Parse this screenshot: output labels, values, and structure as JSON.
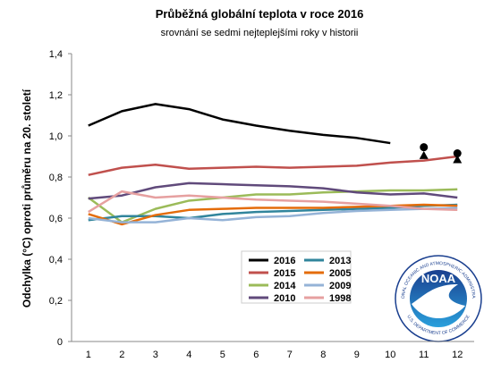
{
  "chart_data": {
    "type": "line",
    "title": "Průběžná globální teplota v roce 2016",
    "subtitle": "srovnání se sedmi nejteplejšími roky v historii",
    "y_label": "Odchylka (°C) oproti průměru na 20. století",
    "categories": [
      "1",
      "2",
      "3",
      "4",
      "5",
      "6",
      "7",
      "8",
      "9",
      "10",
      "11",
      "12"
    ],
    "ylim": [
      0,
      1.4
    ],
    "yticks": [
      0,
      {
        "value": 0.2,
        "label": "0,2"
      },
      {
        "value": 0.4,
        "label": "0,4"
      },
      {
        "value": 0.6,
        "label": "0,6"
      },
      {
        "value": 0.8,
        "label": "0,8"
      },
      {
        "value": 1.0,
        "label": "1,0"
      },
      {
        "value": 1.2,
        "label": "1,2"
      },
      {
        "value": 1.4,
        "label": "1,4"
      }
    ],
    "series": [
      {
        "name": "2016",
        "color": "#000000",
        "values": [
          1.05,
          1.12,
          1.155,
          1.13,
          1.08,
          1.05,
          1.025,
          1.005,
          0.99,
          0.965,
          null,
          null
        ]
      },
      {
        "name": "2015",
        "color": "#c0504d",
        "values": [
          0.81,
          0.845,
          0.86,
          0.84,
          0.845,
          0.85,
          0.845,
          0.85,
          0.855,
          0.87,
          0.88,
          0.9
        ]
      },
      {
        "name": "2014",
        "color": "#9bbb59",
        "values": [
          0.7,
          0.58,
          0.645,
          0.685,
          0.7,
          0.715,
          0.715,
          0.725,
          0.73,
          0.735,
          0.735,
          0.74
        ]
      },
      {
        "name": "2010",
        "color": "#604a7b",
        "values": [
          0.695,
          0.71,
          0.75,
          0.77,
          0.765,
          0.76,
          0.755,
          0.745,
          0.725,
          0.715,
          0.72,
          0.7
        ]
      },
      {
        "name": "2013",
        "color": "#31859c",
        "values": [
          0.59,
          0.61,
          0.61,
          0.6,
          0.62,
          0.63,
          0.635,
          0.64,
          0.645,
          0.65,
          0.66,
          0.665
        ]
      },
      {
        "name": "2005",
        "color": "#e46c0a",
        "values": [
          0.62,
          0.57,
          0.615,
          0.64,
          0.645,
          0.65,
          0.65,
          0.65,
          0.655,
          0.66,
          0.665,
          0.66
        ]
      },
      {
        "name": "2009",
        "color": "#95b3d7",
        "values": [
          0.6,
          0.58,
          0.58,
          0.6,
          0.59,
          0.605,
          0.61,
          0.625,
          0.635,
          0.64,
          0.645,
          0.65
        ]
      },
      {
        "name": "1998",
        "color": "#e6a0a0",
        "values": [
          0.63,
          0.73,
          0.7,
          0.71,
          0.7,
          0.69,
          0.685,
          0.68,
          0.67,
          0.66,
          0.645,
          0.64
        ]
      }
    ],
    "points": [
      {
        "x": 11,
        "y": 0.945,
        "shape": "circle",
        "color": "#000000"
      },
      {
        "x": 11,
        "y": 0.905,
        "shape": "triangle",
        "color": "#000000"
      },
      {
        "x": 12,
        "y": 0.915,
        "shape": "circle",
        "color": "#000000"
      },
      {
        "x": 12,
        "y": 0.885,
        "shape": "triangle",
        "color": "#000000"
      }
    ],
    "logo": {
      "name": "NOAA",
      "top_text": "NATIONAL OCEANIC AND ATMOSPHERIC ADMINISTRATION",
      "bottom_text": "U.S. DEPARTMENT OF COMMERCE"
    }
  }
}
